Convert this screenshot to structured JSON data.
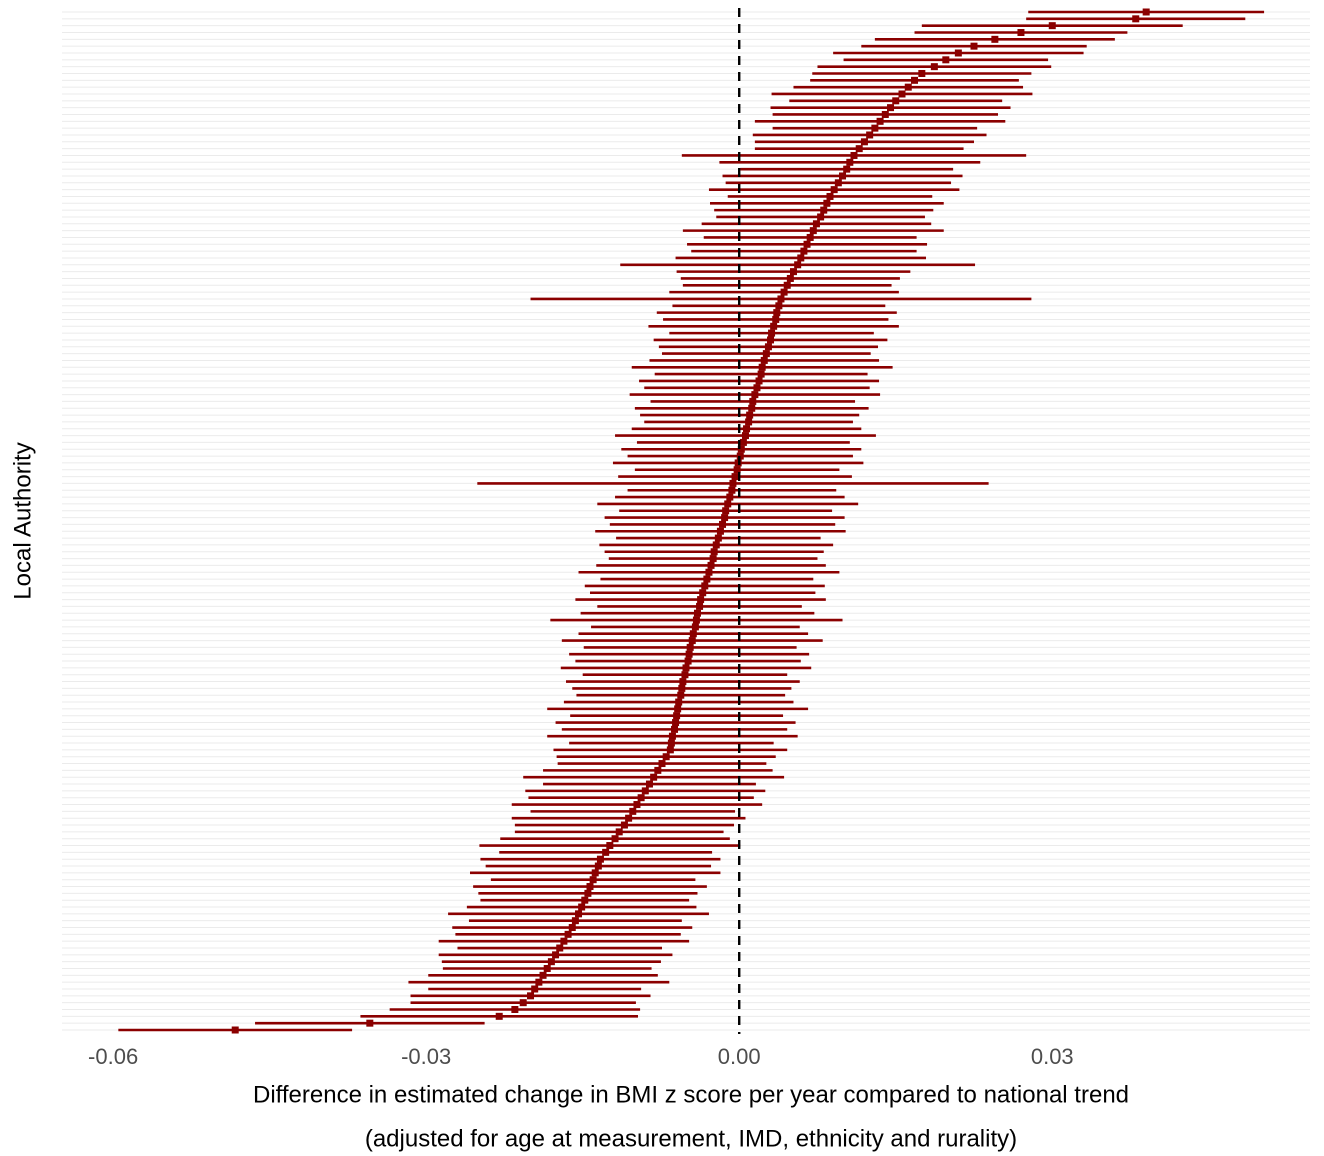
{
  "chart_data": {
    "type": "forest",
    "x_label": "Difference in estimated change in BMI z score per year compared to national trend",
    "x_sublabel": "(adjusted for age at measurement, IMD, ethnicity and rurality)",
    "y_label": "Local Authority",
    "color": "#8b0000",
    "grid": true,
    "reference_line": 0,
    "xlim": [
      -0.0649,
      0.0547
    ],
    "xticks": [
      -0.06,
      -0.03,
      {
        "value": 0,
        "label": "0.00"
      },
      0.03
    ],
    "values": [
      -0.0483,
      -0.0354,
      -0.023,
      -0.0215,
      -0.0207,
      -0.02,
      -0.0196,
      -0.0192,
      -0.0188,
      -0.0184,
      -0.018,
      -0.0176,
      -0.0172,
      -0.0168,
      -0.0164,
      -0.016,
      -0.0157,
      -0.0154,
      -0.0151,
      -0.0148,
      -0.0145,
      -0.0143,
      -0.014,
      -0.0138,
      -0.0135,
      -0.0133,
      -0.0128,
      -0.0124,
      -0.0119,
      -0.0115,
      -0.011,
      -0.0106,
      -0.0102,
      -0.0098,
      -0.0094,
      -0.009,
      -0.0086,
      -0.0082,
      -0.0078,
      -0.0074,
      -0.007,
      -0.0066,
      -0.0065,
      -0.0064,
      -0.0062,
      -0.0061,
      -0.006,
      -0.0059,
      -0.0058,
      -0.0056,
      -0.0055,
      -0.0054,
      -0.0052,
      -0.0051,
      -0.0049,
      -0.0048,
      -0.0047,
      -0.0045,
      -0.0044,
      -0.0042,
      -0.0041,
      -0.004,
      -0.0038,
      -0.0037,
      -0.0035,
      -0.0033,
      -0.0031,
      -0.0029,
      -0.0027,
      -0.0025,
      -0.0024,
      -0.0022,
      -0.002,
      -0.0018,
      -0.0016,
      -0.0014,
      -0.0013,
      -0.0011,
      -0.0009,
      -0.0007,
      -0.0006,
      -0.0004,
      -0.0002,
      -0.0001,
      0.0001,
      0.0002,
      0.0004,
      0.0006,
      0.0007,
      0.0009,
      0.001,
      0.0012,
      0.0013,
      0.0015,
      0.0017,
      0.0019,
      0.0021,
      0.0022,
      0.0024,
      0.0026,
      0.0028,
      0.003,
      0.0031,
      0.0033,
      0.0035,
      0.0036,
      0.0038,
      0.004,
      0.0043,
      0.0046,
      0.0049,
      0.0052,
      0.0056,
      0.0059,
      0.0062,
      0.0065,
      0.0068,
      0.0071,
      0.0074,
      0.0078,
      0.0081,
      0.0084,
      0.0087,
      0.0091,
      0.0095,
      0.0099,
      0.0103,
      0.0106,
      0.011,
      0.0115,
      0.012,
      0.0125,
      0.013,
      0.0135,
      0.014,
      0.0145,
      0.015,
      0.0156,
      0.0162,
      0.0168,
      0.0175,
      0.0187,
      0.0198,
      0.021,
      0.0225,
      0.0245,
      0.027,
      0.03,
      0.038,
      0.039
    ],
    "errors": [
      0.0112,
      0.011,
      0.0133,
      0.012,
      0.0108,
      0.0115,
      0.0102,
      0.0125,
      0.011,
      0.01,
      0.0105,
      0.0112,
      0.0098,
      0.012,
      0.0108,
      0.0115,
      0.0102,
      0.0125,
      0.011,
      0.01,
      0.0105,
      0.0112,
      0.0098,
      0.012,
      0.0108,
      0.0115,
      0.0102,
      0.0125,
      0.011,
      0.01,
      0.0105,
      0.0112,
      0.0098,
      0.012,
      0.0108,
      0.0115,
      0.0102,
      0.0125,
      0.011,
      0.01,
      0.0105,
      0.0112,
      0.0098,
      0.012,
      0.0108,
      0.0115,
      0.0102,
      0.0125,
      0.011,
      0.01,
      0.0105,
      0.0112,
      0.0098,
      0.012,
      0.0108,
      0.0115,
      0.0102,
      0.0125,
      0.011,
      0.01,
      0.014,
      0.0112,
      0.0098,
      0.012,
      0.0108,
      0.0115,
      0.0102,
      0.0125,
      0.011,
      0.01,
      0.0105,
      0.0112,
      0.0098,
      0.012,
      0.0108,
      0.0115,
      0.0102,
      0.0125,
      0.011,
      0.01,
      0.0245,
      0.0112,
      0.0098,
      0.012,
      0.0108,
      0.0115,
      0.0102,
      0.0125,
      0.011,
      0.01,
      0.0105,
      0.0112,
      0.0098,
      0.012,
      0.0108,
      0.0115,
      0.0102,
      0.0125,
      0.011,
      0.01,
      0.0105,
      0.0112,
      0.0098,
      0.012,
      0.0108,
      0.0115,
      0.0102,
      0.024,
      0.011,
      0.01,
      0.0105,
      0.0112,
      0.017,
      0.012,
      0.0108,
      0.0115,
      0.0102,
      0.0125,
      0.011,
      0.01,
      0.0105,
      0.0112,
      0.0098,
      0.012,
      0.0108,
      0.0115,
      0.0102,
      0.0125,
      0.0165,
      0.01,
      0.0105,
      0.0112,
      0.0098,
      0.012,
      0.0108,
      0.0115,
      0.0102,
      0.0125,
      0.011,
      0.01,
      0.0105,
      0.0112,
      0.0098,
      0.012,
      0.0108,
      0.0115,
      0.0102,
      0.0125,
      0.0105,
      0.0113
    ]
  }
}
